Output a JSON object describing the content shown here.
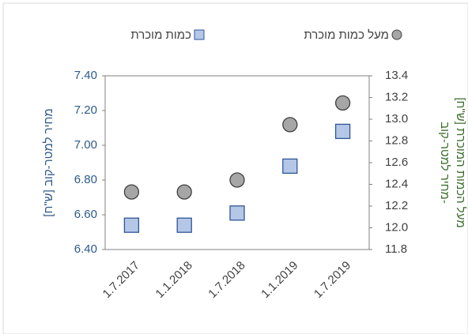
{
  "chart_data": {
    "type": "scatter",
    "categories": [
      "1.7.2017",
      "1.1.2018",
      "1.7.2018",
      "1.1.2019",
      "1.7.2019"
    ],
    "series": [
      {
        "name": "כמות מוכרת",
        "color": "#b4c7e7",
        "marker": "square",
        "values": [
          6.54,
          6.54,
          6.61,
          6.88,
          7.08
        ]
      },
      {
        "name": "מעל כמות מוכרת",
        "color": "#a6a6a6",
        "marker": "circle",
        "axis": "y2",
        "values": [
          12.33,
          12.33,
          12.44,
          12.95,
          13.15
        ]
      }
    ],
    "ylabel": "מחיר למטר-קוב [ש\"ח]",
    "y2label": [
      "מחיר למטר-קוב-",
      "מעל הכמות המוכרת [ש\"ח]"
    ],
    "ylim": [
      6.4,
      7.4
    ],
    "yticks": [
      {
        "value": 6.4,
        "label": "6.40"
      },
      {
        "value": 6.6,
        "label": "6.60"
      },
      {
        "value": 6.8,
        "label": "6.80"
      },
      {
        "value": 7.0,
        "label": "7.00"
      },
      {
        "value": 7.2,
        "label": "7.20"
      },
      {
        "value": 7.4,
        "label": "7.40"
      }
    ],
    "y2lim": [
      11.8,
      13.4
    ],
    "y2ticks": [
      11.8,
      {
        "value": 12.0,
        "label": "12.0"
      },
      12.2,
      12.4,
      12.6,
      12.8,
      {
        "value": 13.0,
        "label": "13.0"
      },
      13.2,
      13.4
    ],
    "legend": "top"
  }
}
